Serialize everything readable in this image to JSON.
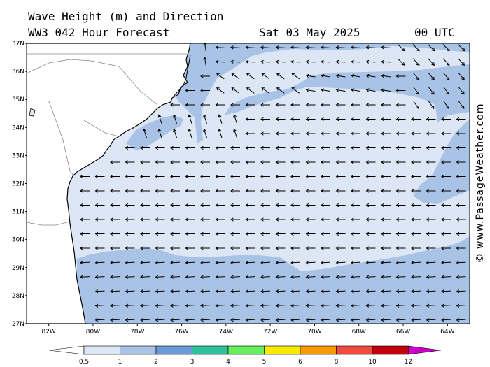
{
  "header": {
    "title_line1": "Wave Height (m) and Direction",
    "title_line2": "WW3 042 Hour Forecast",
    "date": "Sat 03 May 2025",
    "time": "00 UTC"
  },
  "credit": "© www.PassageWeather.com",
  "map": {
    "lon_range": [
      -83,
      -63
    ],
    "lat_range": [
      27,
      37
    ],
    "lon_ticks": [
      "82W",
      "80W",
      "78W",
      "76W",
      "74W",
      "72W",
      "70W",
      "68W",
      "66W",
      "64W"
    ],
    "lat_ticks": [
      "37N",
      "36N",
      "35N",
      "34N",
      "33N",
      "32N",
      "31N",
      "30N",
      "29N",
      "28N",
      "27N"
    ],
    "land_color": "#ffffff",
    "sea_low_color": "#dde6f4",
    "sea_mid_color": "#a9c3e6",
    "arrow_color": "#000000"
  },
  "colorbar": {
    "colors": [
      "#dde6f4",
      "#a9c3e6",
      "#6b9ad8",
      "#2fc29a",
      "#66ef5c",
      "#f8ea00",
      "#f79a00",
      "#f24a3c",
      "#c3000c",
      "#c800c8"
    ],
    "labels": [
      "0.5",
      "1",
      "2",
      "3",
      "4",
      "5",
      "6",
      "8",
      "10",
      "12"
    ]
  }
}
